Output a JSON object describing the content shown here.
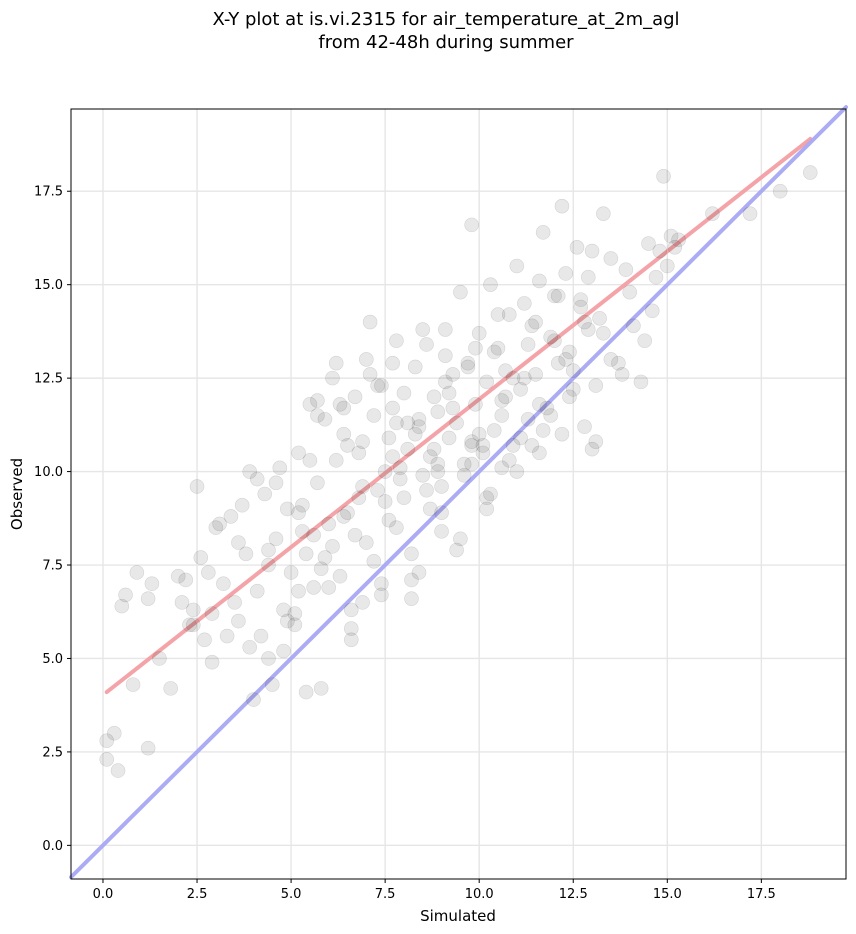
{
  "chart_data": {
    "type": "scatter",
    "title": "X-Y plot at is.vi.2315 for air_temperature_at_2m_agl",
    "subtitle": "from 42-48h during summer",
    "xlabel": "Simulated",
    "ylabel": "Observed",
    "xlim": [
      -0.85,
      19.75
    ],
    "ylim": [
      -0.9,
      19.7
    ],
    "xticks": [
      0.0,
      2.5,
      5.0,
      7.5,
      10.0,
      12.5,
      15.0,
      17.5
    ],
    "yticks": [
      0.0,
      2.5,
      5.0,
      7.5,
      10.0,
      12.5,
      15.0,
      17.5
    ],
    "grid": true,
    "series": [
      {
        "type": "line",
        "color": "#f4a0a4",
        "x": [
          0.1,
          18.8
        ],
        "y": [
          4.1,
          18.9
        ]
      },
      {
        "type": "line",
        "color": "#a8a8f4",
        "x": [
          -0.85,
          19.75
        ],
        "y": [
          -0.85,
          19.75
        ]
      },
      {
        "type": "scatter",
        "color": "#000000",
        "x": [
          0.1,
          0.1,
          0.3,
          0.4,
          0.5,
          0.6,
          0.8,
          0.9,
          1.2,
          1.2,
          1.3,
          1.5,
          1.8,
          2.0,
          2.1,
          2.3,
          2.4,
          2.5,
          2.6,
          2.7,
          2.8,
          2.9,
          3.0,
          3.2,
          3.3,
          3.4,
          3.6,
          3.7,
          3.8,
          3.9,
          4.0,
          4.1,
          4.3,
          4.4,
          4.5,
          4.6,
          4.7,
          4.8,
          4.9,
          5.0,
          5.1,
          5.2,
          5.3,
          5.4,
          5.5,
          5.6,
          5.7,
          5.8,
          5.9,
          6.0,
          6.1,
          6.2,
          6.3,
          6.4,
          6.5,
          6.6,
          6.7,
          6.8,
          6.9,
          7.0,
          7.1,
          7.2,
          7.3,
          7.4,
          7.5,
          7.6,
          7.7,
          7.8,
          7.9,
          8.0,
          8.1,
          8.2,
          8.3,
          8.4,
          8.5,
          8.6,
          8.7,
          8.8,
          8.9,
          9.0,
          9.1,
          9.2,
          9.3,
          9.4,
          9.5,
          9.6,
          9.7,
          9.8,
          9.9,
          10.0,
          10.1,
          10.2,
          10.3,
          10.4,
          10.5,
          10.6,
          10.7,
          10.8,
          10.9,
          11.0,
          11.1,
          11.2,
          11.3,
          11.4,
          11.5,
          11.6,
          11.7,
          11.8,
          11.9,
          12.0,
          12.1,
          12.2,
          12.3,
          12.4,
          12.5,
          12.6,
          12.7,
          12.8,
          12.9,
          13.0,
          13.1,
          13.2,
          13.3,
          13.5,
          13.7,
          13.9,
          14.1,
          14.3,
          14.5,
          14.7,
          14.9,
          15.1,
          15.3,
          16.2,
          17.2,
          18.0,
          18.8,
          2.4,
          3.1,
          3.5,
          4.2,
          4.6,
          5.1,
          5.5,
          5.9,
          6.3,
          6.7,
          7.1,
          7.5,
          7.9,
          8.3,
          8.7,
          9.1,
          9.5,
          9.9,
          10.3,
          10.7,
          11.1,
          11.5,
          11.9,
          12.3,
          12.7,
          13.1,
          13.5,
          14.0,
          14.4,
          14.8,
          15.2,
          2.2,
          2.9,
          3.6,
          4.1,
          4.9,
          5.3,
          5.7,
          6.1,
          6.5,
          6.9,
          7.3,
          7.7,
          8.1,
          8.5,
          8.9,
          9.3,
          9.7,
          10.1,
          10.5,
          10.9,
          11.3,
          11.7,
          12.1,
          12.5,
          12.9,
          13.3,
          13.8,
          14.6,
          15.0,
          3.9,
          4.4,
          4.8,
          5.2,
          5.6,
          6.0,
          6.4,
          6.8,
          7.2,
          7.6,
          8.0,
          8.4,
          8.8,
          9.2,
          9.6,
          10.0,
          10.4,
          10.8,
          11.2,
          11.6,
          12.0,
          12.4,
          12.8,
          5.8,
          6.2,
          6.6,
          7.0,
          7.4,
          7.8,
          8.2,
          8.6,
          9.0,
          9.4,
          9.8,
          10.2,
          10.6,
          11.0,
          6.6,
          7.4,
          8.2,
          9.0,
          9.8,
          4.4,
          5.2,
          5.7,
          6.9,
          7.7,
          8.4,
          9.1,
          9.8,
          10.6,
          11.4,
          12.2,
          13.0,
          5.4,
          6.4,
          7.8,
          8.9,
          10.2,
          11.6
        ],
        "y": [
          2.3,
          2.8,
          3.0,
          2.0,
          6.4,
          6.7,
          4.3,
          7.3,
          6.6,
          2.6,
          7.0,
          5.0,
          4.2,
          7.2,
          6.5,
          5.9,
          6.3,
          9.6,
          7.7,
          5.5,
          7.3,
          4.9,
          8.5,
          7.0,
          5.6,
          8.8,
          6.0,
          9.1,
          7.8,
          10.0,
          3.9,
          6.8,
          9.4,
          7.5,
          4.3,
          8.2,
          10.1,
          6.3,
          9.0,
          7.3,
          5.9,
          10.5,
          8.4,
          4.1,
          11.8,
          6.9,
          9.7,
          7.4,
          11.4,
          8.6,
          12.5,
          10.3,
          7.2,
          11.0,
          8.9,
          5.8,
          12.0,
          9.3,
          10.8,
          8.1,
          14.0,
          11.5,
          9.5,
          12.3,
          10.0,
          8.7,
          11.7,
          13.5,
          9.8,
          12.1,
          10.6,
          7.8,
          12.8,
          11.2,
          9.9,
          13.4,
          10.4,
          12.0,
          11.6,
          9.6,
          13.1,
          10.9,
          12.6,
          11.3,
          14.8,
          10.2,
          12.9,
          16.6,
          11.8,
          13.7,
          10.5,
          12.4,
          15.0,
          11.1,
          13.3,
          11.9,
          12.7,
          14.2,
          10.7,
          15.5,
          12.2,
          14.5,
          11.4,
          13.9,
          12.6,
          15.1,
          16.4,
          11.7,
          13.6,
          14.7,
          12.9,
          17.1,
          15.3,
          13.2,
          12.2,
          16.0,
          14.4,
          11.2,
          13.8,
          15.9,
          10.8,
          14.1,
          16.9,
          13.0,
          12.9,
          15.4,
          13.9,
          12.4,
          16.1,
          15.2,
          17.9,
          16.3,
          16.2,
          16.9,
          16.9,
          17.5,
          18.0,
          5.9,
          8.6,
          6.5,
          5.6,
          9.7,
          6.2,
          10.3,
          7.7,
          11.8,
          8.3,
          12.6,
          9.2,
          10.1,
          11.0,
          9.0,
          12.4,
          8.2,
          13.3,
          9.4,
          12.0,
          10.9,
          14.0,
          11.5,
          13.0,
          14.6,
          12.3,
          15.7,
          14.8,
          13.5,
          15.9,
          16.0,
          7.1,
          6.2,
          8.1,
          9.8,
          6.0,
          9.1,
          11.9,
          8.0,
          10.7,
          9.6,
          12.3,
          10.4,
          11.3,
          13.8,
          10.0,
          11.7,
          12.8,
          10.7,
          14.2,
          12.5,
          13.4,
          11.1,
          14.7,
          12.7,
          15.2,
          13.7,
          12.6,
          14.3,
          15.5,
          5.3,
          7.9,
          5.2,
          6.8,
          8.3,
          6.9,
          8.8,
          10.5,
          7.6,
          10.9,
          9.3,
          11.4,
          10.6,
          12.1,
          9.9,
          11.0,
          13.2,
          10.3,
          12.5,
          11.8,
          13.5,
          12.0,
          14.0,
          4.2,
          12.9,
          6.3,
          13.0,
          7.0,
          11.3,
          6.6,
          9.5,
          8.9,
          7.9,
          10.8,
          9.0,
          11.5,
          10.0,
          5.5,
          6.7,
          7.1,
          8.4,
          10.7,
          5.0,
          8.9,
          11.5,
          6.5,
          12.9,
          7.3,
          13.8,
          10.2,
          10.1,
          10.7,
          11.0,
          10.6,
          7.8,
          11.7,
          8.5,
          10.2,
          9.3,
          10.5
        ]
      }
    ]
  }
}
